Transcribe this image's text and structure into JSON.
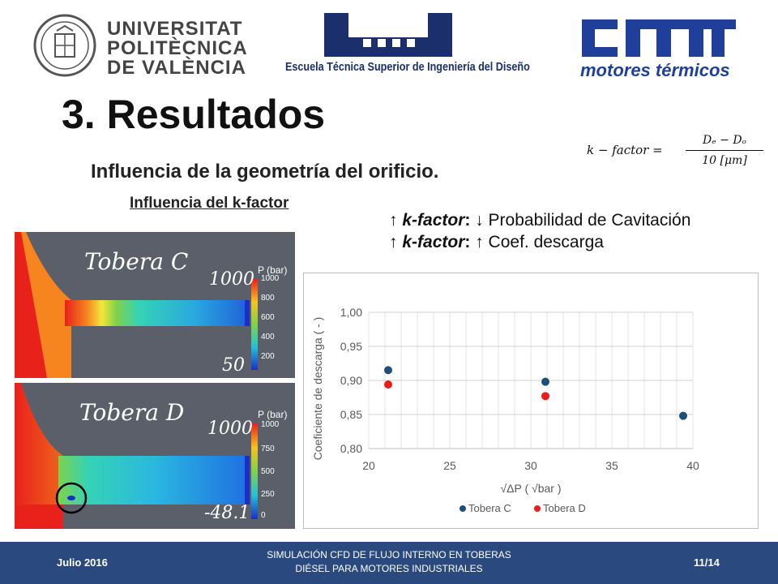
{
  "header": {
    "upv_lines": [
      "UNIVERSITAT",
      "POLITÈCNICA",
      "DE VALÈNCIA"
    ],
    "etsid_caption": "Escuela Técnica Superior de Ingeniería del Diseño",
    "cmt_caption": "motores térmicos"
  },
  "slide": {
    "title": "3. Resultados",
    "subtitle": "Influencia de la geometría del orificio.",
    "subsubtitle": "Influencia del k-factor",
    "formula": {
      "lhs": "k − factor =",
      "numerator": "Dₑ − Dₒ",
      "denominator": "10 [μm]"
    },
    "bullets": [
      {
        "arrow1": "↑ ",
        "term": "k-factor",
        "sep": ": ",
        "arrow2": "↓ ",
        "text": "Probabilidad de Cavitación"
      },
      {
        "arrow1": "↑ ",
        "term": "k-factor",
        "sep": ": ",
        "arrow2": "↑ ",
        "text": "Coef. descarga"
      }
    ]
  },
  "simulations": [
    {
      "label": "Tobera C",
      "max_label": "1000",
      "min_label": "50",
      "colorbar_title": "P (bar)",
      "ticks": [
        "1000",
        "800",
        "600",
        "400",
        "200"
      ]
    },
    {
      "label": "Tobera D",
      "max_label": "1000",
      "min_label": "-48.1",
      "colorbar_title": "P (bar)",
      "ticks": [
        "1000",
        "750",
        "500",
        "250",
        "0"
      ]
    }
  ],
  "chart_data": {
    "type": "scatter",
    "xlabel": "√ΔP ( √bar )",
    "ylabel": "Coeficiente de descarga ( - )",
    "xlim": [
      20,
      40
    ],
    "ylim": [
      0.8,
      1.0
    ],
    "xticks": [
      "20",
      "25",
      "30",
      "35",
      "40"
    ],
    "yticks": [
      "0,80",
      "0,85",
      "0,90",
      "0,95",
      "1,00"
    ],
    "grid": true,
    "legend": "bottom",
    "series": [
      {
        "name": "Tobera C",
        "color": "#1f4e79",
        "x": [
          21.2,
          30.9,
          39.4
        ],
        "y": [
          0.915,
          0.898,
          0.848
        ]
      },
      {
        "name": "Tobera D",
        "color": "#e81e1e",
        "x": [
          21.2,
          30.9
        ],
        "y": [
          0.894,
          0.877
        ]
      }
    ]
  },
  "footer": {
    "date": "Julio 2016",
    "title_line1": "SIMULACIÓN CFD DE FLUJO INTERNO EN TOBERAS",
    "title_line2": "DIÉSEL PARA MOTORES INDUSTRIALES",
    "page": "11/14"
  }
}
